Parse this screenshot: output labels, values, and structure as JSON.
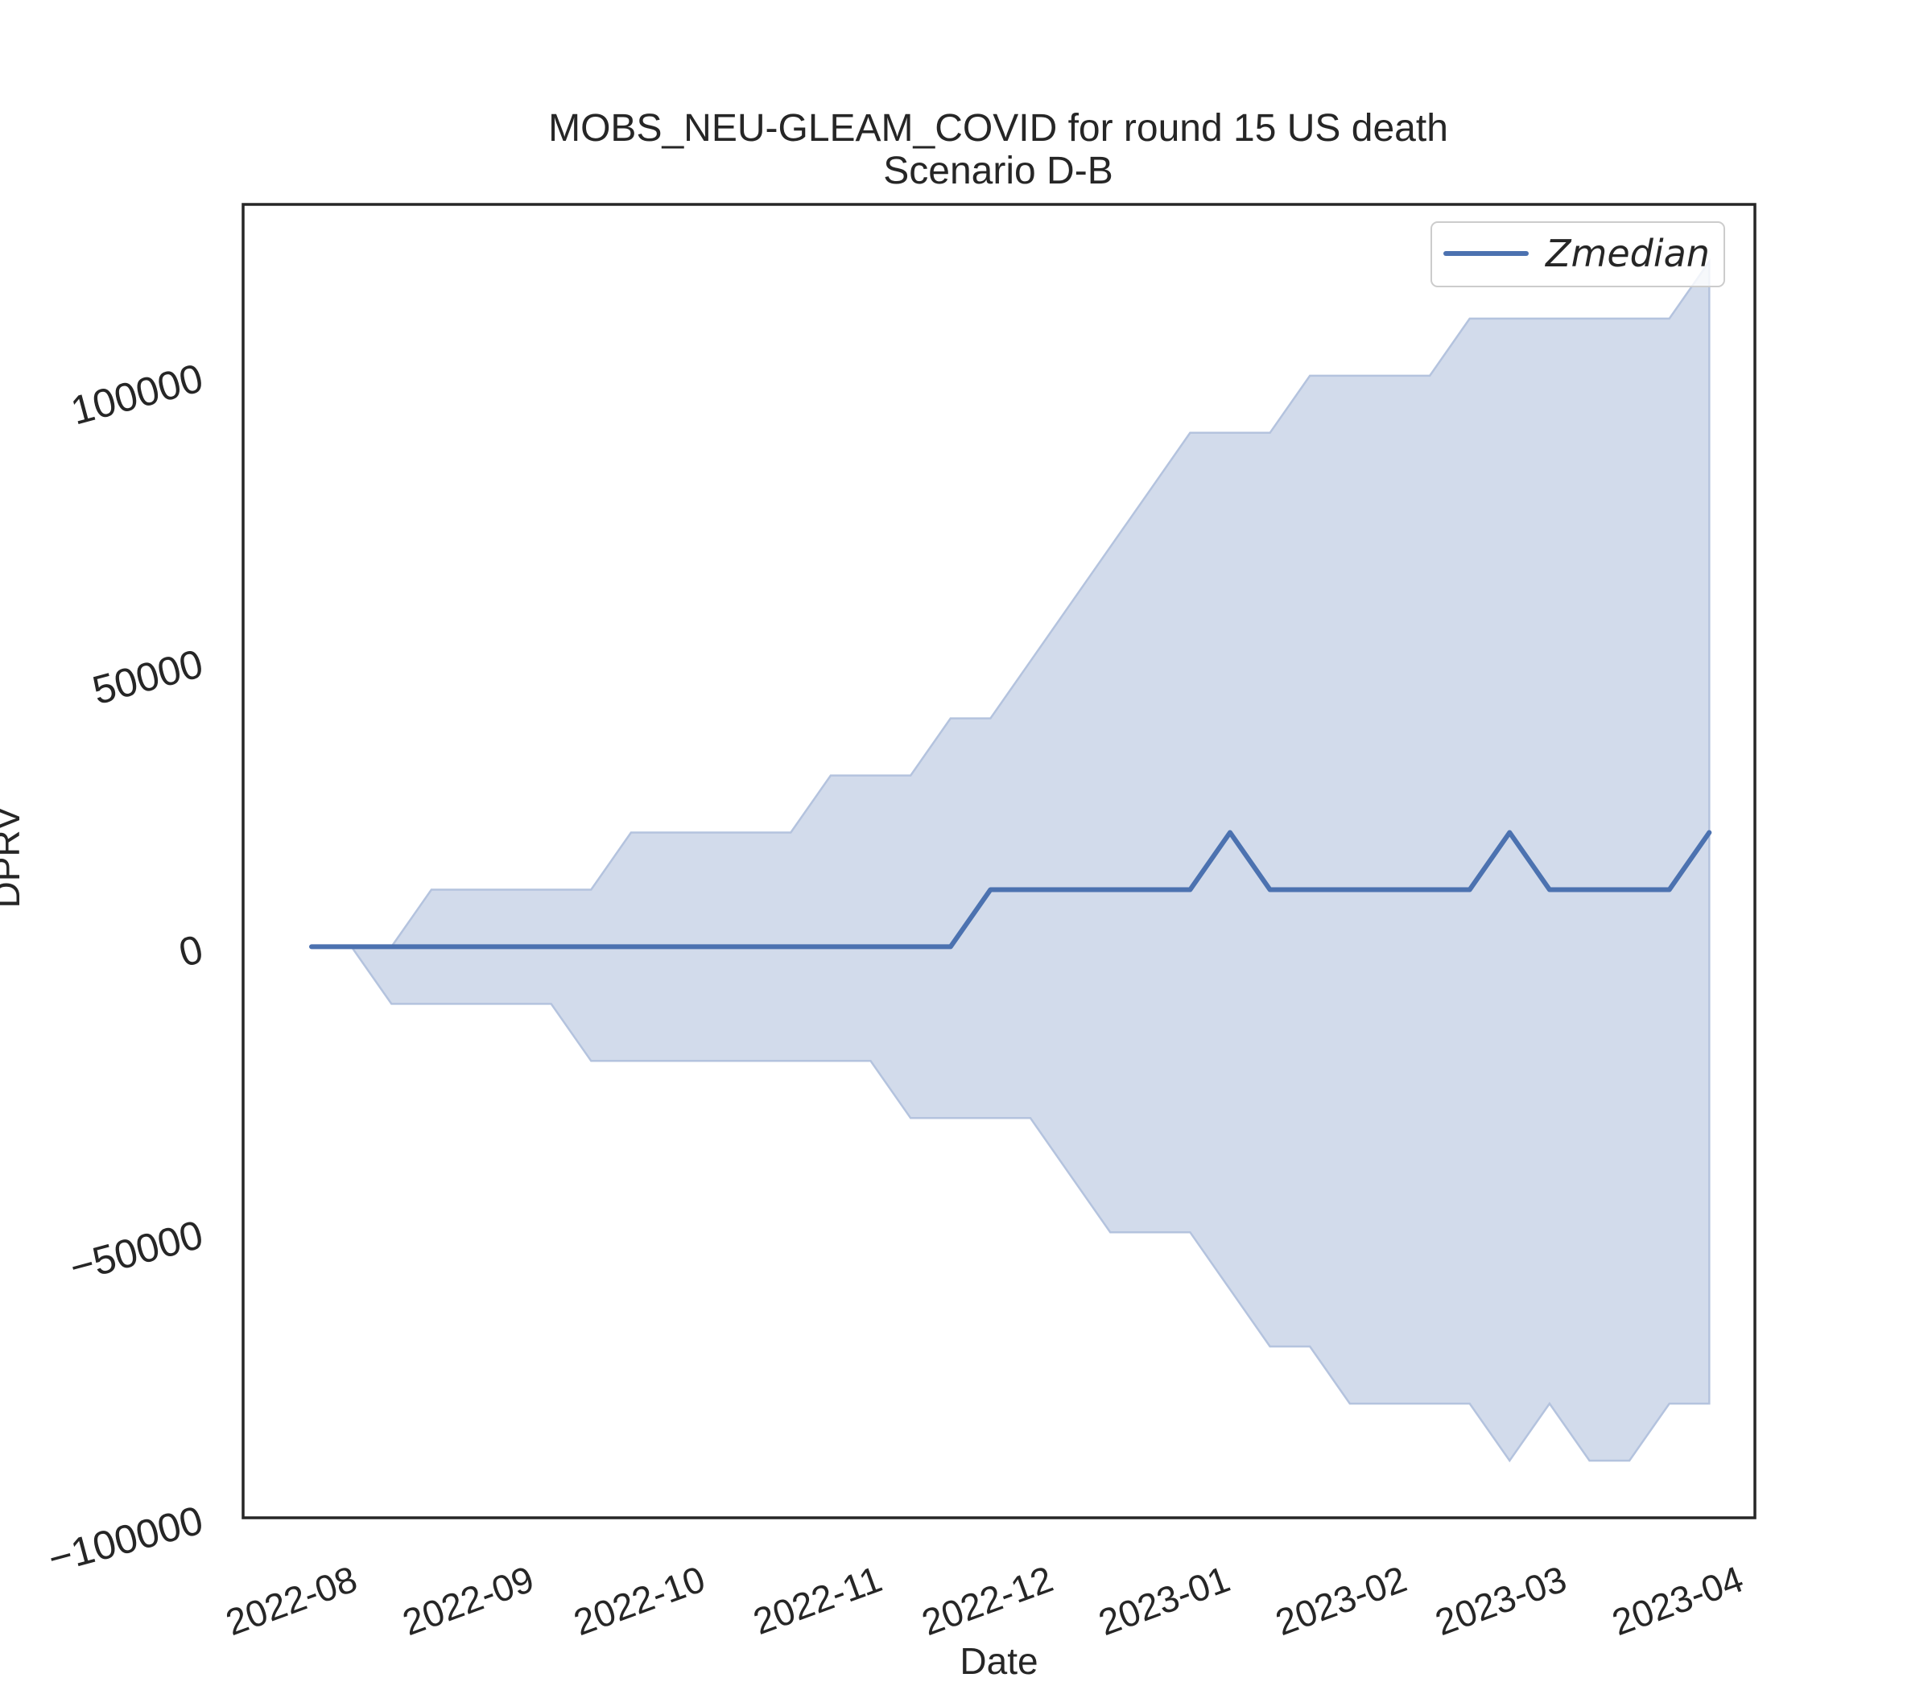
{
  "chart_data": {
    "type": "line",
    "title": "MOBS_NEU-GLEAM_COVID for round 15 US death",
    "subtitle": "Scenario D-B",
    "xlabel": "Date",
    "ylabel": "DPRV",
    "ylim": [
      -100000,
      130000
    ],
    "xlim": [
      "2022-07-13",
      "2023-04-04"
    ],
    "yticks": [
      -100000,
      -50000,
      0,
      50000,
      100000
    ],
    "ytick_labels": [
      "−100000",
      "−50000",
      "0",
      "50000",
      "100000"
    ],
    "xticks": [
      "2022-08-01",
      "2022-09-01",
      "2022-10-01",
      "2022-11-01",
      "2022-12-01",
      "2023-01-01",
      "2023-02-01",
      "2023-03-01",
      "2023-04-01"
    ],
    "xtick_labels": [
      "2022-08",
      "2022-09",
      "2022-10",
      "2022-11",
      "2022-12",
      "2023-01",
      "2023-02",
      "2023-03",
      "2023-04"
    ],
    "grid": false,
    "legend": "top-right",
    "colors": {
      "line": "#4c72b0",
      "band": "#d2dbeb",
      "band_edge": "#b4c3de"
    },
    "x": [
      "2022-07-25",
      "2022-08-01",
      "2022-08-08",
      "2022-08-15",
      "2022-08-22",
      "2022-08-29",
      "2022-09-05",
      "2022-09-12",
      "2022-09-19",
      "2022-09-26",
      "2022-10-03",
      "2022-10-10",
      "2022-10-17",
      "2022-10-24",
      "2022-10-31",
      "2022-11-07",
      "2022-11-14",
      "2022-11-21",
      "2022-11-28",
      "2022-12-05",
      "2022-12-12",
      "2022-12-19",
      "2022-12-26",
      "2023-01-02",
      "2023-01-09",
      "2023-01-16",
      "2023-01-23",
      "2023-01-30",
      "2023-02-06",
      "2023-02-13",
      "2023-02-20",
      "2023-02-27",
      "2023-03-06",
      "2023-03-13",
      "2023-03-20",
      "2023-03-27"
    ],
    "series": [
      {
        "name": "Zmedian",
        "values": [
          0,
          0,
          0,
          0,
          0,
          0,
          0,
          0,
          0,
          0,
          0,
          0,
          0,
          0,
          0,
          0,
          0,
          10000,
          10000,
          10000,
          10000,
          10000,
          10000,
          20000,
          10000,
          10000,
          10000,
          10000,
          10000,
          10000,
          20000,
          10000,
          10000,
          10000,
          10000,
          20000
        ]
      }
    ],
    "band": {
      "upper": [
        0,
        0,
        0,
        10000,
        10000,
        10000,
        10000,
        10000,
        20000,
        20000,
        20000,
        20000,
        20000,
        30000,
        30000,
        30000,
        40000,
        40000,
        50000,
        60000,
        70000,
        80000,
        90000,
        90000,
        90000,
        100000,
        100000,
        100000,
        100000,
        110000,
        110000,
        110000,
        110000,
        110000,
        110000,
        120000
      ],
      "lower": [
        0,
        0,
        -10000,
        -10000,
        -10000,
        -10000,
        -10000,
        -20000,
        -20000,
        -20000,
        -20000,
        -20000,
        -20000,
        -20000,
        -20000,
        -30000,
        -30000,
        -30000,
        -30000,
        -40000,
        -50000,
        -50000,
        -50000,
        -60000,
        -70000,
        -70000,
        -80000,
        -80000,
        -80000,
        -80000,
        -90000,
        -80000,
        -90000,
        -90000,
        -80000,
        -80000
      ]
    }
  }
}
